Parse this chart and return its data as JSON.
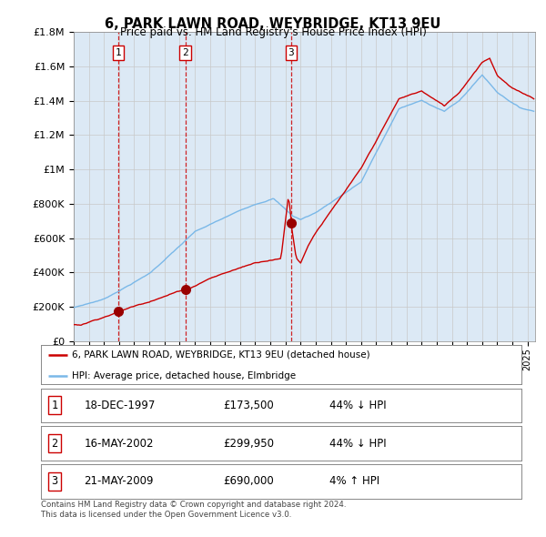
{
  "title": "6, PARK LAWN ROAD, WEYBRIDGE, KT13 9EU",
  "subtitle": "Price paid vs. HM Land Registry's House Price Index (HPI)",
  "sale_dates_float": [
    1997.96,
    2002.37,
    2009.38
  ],
  "sale_prices": [
    173500,
    299950,
    690000
  ],
  "sale_labels": [
    "1",
    "2",
    "3"
  ],
  "legend_entries": [
    "6, PARK LAWN ROAD, WEYBRIDGE, KT13 9EU (detached house)",
    "HPI: Average price, detached house, Elmbridge"
  ],
  "table_rows": [
    [
      "1",
      "18-DEC-1997",
      "£173,500",
      "44% ↓ HPI"
    ],
    [
      "2",
      "16-MAY-2002",
      "£299,950",
      "44% ↓ HPI"
    ],
    [
      "3",
      "21-MAY-2009",
      "£690,000",
      "4% ↑ HPI"
    ]
  ],
  "footer": "Contains HM Land Registry data © Crown copyright and database right 2024.\nThis data is licensed under the Open Government Licence v3.0.",
  "hpi_color": "#7ab8e8",
  "price_color": "#cc0000",
  "sale_dot_color": "#990000",
  "vline_color": "#cc0000",
  "background_color": "#dce9f5",
  "ylim": [
    0,
    1800000
  ],
  "ylabel_ticks": [
    0,
    200000,
    400000,
    600000,
    800000,
    1000000,
    1200000,
    1400000,
    1600000,
    1800000
  ],
  "xlim_start": 1995.0,
  "xlim_end": 2025.5
}
